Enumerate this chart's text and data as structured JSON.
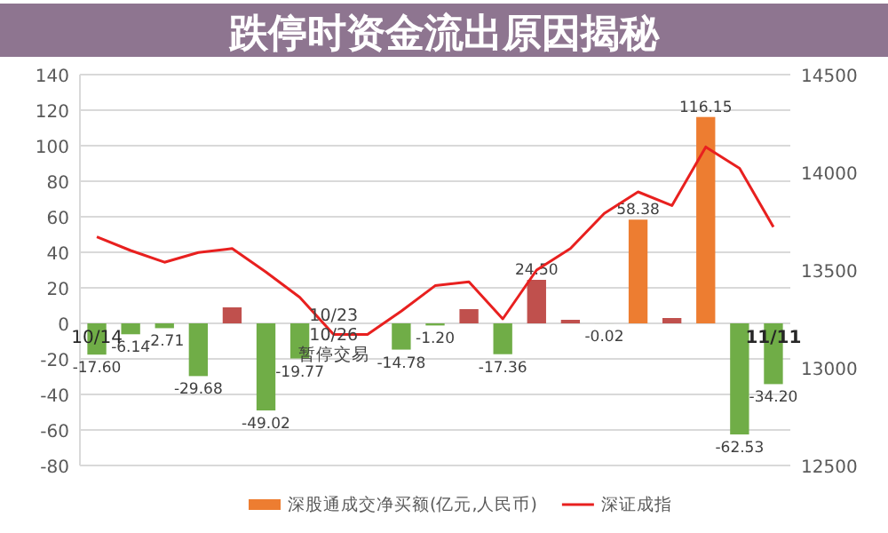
{
  "chart_data": {
    "type": "bar",
    "title": "跌停时资金流出原因揭秘",
    "categories": [
      "10/14",
      null,
      null,
      null,
      null,
      null,
      null,
      null,
      null,
      null,
      null,
      null,
      null,
      null,
      null,
      null,
      null,
      null,
      null,
      null,
      "11/11"
    ],
    "series": [
      {
        "name": "深股通成交净买额(亿元,人民币)",
        "color": "#ed7d31",
        "colors": [
          "#70ad47",
          "#70ad47",
          "#70ad47",
          "#70ad47",
          "#c0504d",
          "#70ad47",
          "#70ad47",
          null,
          null,
          "#70ad47",
          "#70ad47",
          "#c0504d",
          "#70ad47",
          "#c0504d",
          "#c0504d",
          "#70ad47",
          "#ed7d31",
          "#c0504d",
          "#ed7d31",
          "#70ad47",
          "#70ad47"
        ],
        "values": [
          -17.6,
          -6.14,
          -2.71,
          -29.68,
          9,
          -49.02,
          -19.77,
          null,
          null,
          -14.78,
          -1.2,
          8,
          -17.36,
          24.5,
          2,
          -0.02,
          58.38,
          3,
          116.15,
          -62.53,
          -34.2
        ],
        "value_labels": [
          "-17.60",
          "-6.14",
          "-2.71",
          "-29.68",
          null,
          "-49.02",
          "-19.77",
          null,
          null,
          "-14.78",
          "-1.20",
          null,
          "-17.36",
          "24.50",
          null,
          "-0.02",
          "58.38",
          null,
          "116.15",
          "-62.53",
          "-34.20"
        ]
      },
      {
        "name": "深证成指",
        "type": "line",
        "axis": "y2",
        "color": "#e8201f",
        "values": [
          13670,
          13600,
          13540,
          13590,
          13610,
          13490,
          13360,
          13170,
          13170,
          13290,
          13420,
          13440,
          13250,
          13500,
          13610,
          13790,
          13900,
          13830,
          14130,
          14020,
          13720
        ]
      }
    ],
    "ylim": [
      -80,
      140
    ],
    "yticks": [
      -80,
      -60,
      -40,
      -20,
      0,
      20,
      40,
      60,
      80,
      100,
      120,
      140
    ],
    "y2lim": [
      12500,
      14500
    ],
    "y2ticks": [
      12500,
      13000,
      13500,
      14000,
      14500
    ],
    "grid": "y",
    "legend": "bottom",
    "marker": "none",
    "annotations": [
      "10/23",
      "10/26",
      "暂停交易"
    ]
  }
}
